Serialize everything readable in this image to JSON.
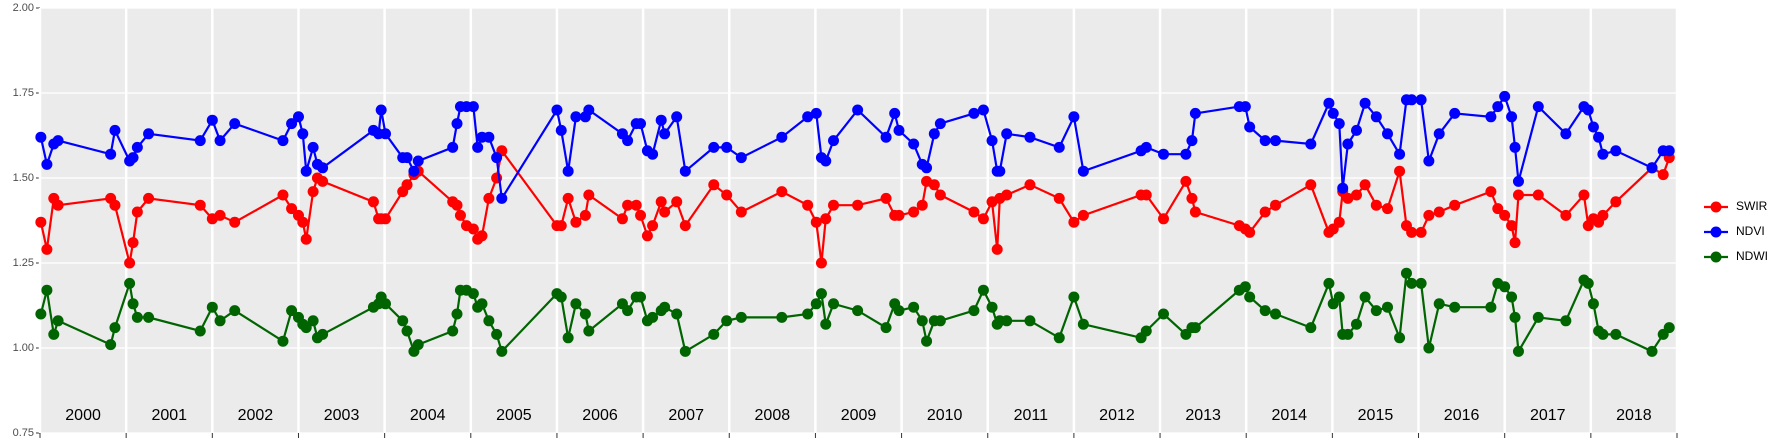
{
  "chart_data": {
    "type": "line",
    "x": [
      2000.01,
      2000.08,
      2000.16,
      2000.21,
      2000.82,
      2000.87,
      2001.04,
      2001.08,
      2001.13,
      2001.26,
      2001.86,
      2002.0,
      2002.09,
      2002.26,
      2002.82,
      2002.92,
      2003.0,
      2003.05,
      2003.09,
      2003.17,
      2003.22,
      2003.28,
      2003.87,
      2003.93,
      2003.96,
      2004.01,
      2004.21,
      2004.26,
      2004.34,
      2004.39,
      2004.79,
      2004.84,
      2004.88,
      2004.95,
      2005.03,
      2005.08,
      2005.13,
      2005.21,
      2005.3,
      2005.36,
      2006.0,
      2006.05,
      2006.13,
      2006.22,
      2006.33,
      2006.37,
      2006.76,
      2006.82,
      2006.92,
      2006.97,
      2007.05,
      2007.11,
      2007.21,
      2007.25,
      2007.39,
      2007.49,
      2007.82,
      2007.97,
      2008.14,
      2008.61,
      2008.91,
      2009.01,
      2009.07,
      2009.12,
      2009.21,
      2009.49,
      2009.82,
      2009.92,
      2009.97,
      2010.14,
      2010.24,
      2010.29,
      2010.38,
      2010.45,
      2010.84,
      2010.95,
      2011.05,
      2011.11,
      2011.14,
      2011.22,
      2011.49,
      2011.83,
      2012.0,
      2012.11,
      2012.78,
      2012.84,
      2013.04,
      2013.3,
      2013.37,
      2013.41,
      2013.92,
      2013.99,
      2014.04,
      2014.22,
      2014.34,
      2014.75,
      2014.96,
      2015.01,
      2015.08,
      2015.12,
      2015.18,
      2015.28,
      2015.38,
      2015.51,
      2015.64,
      2015.78,
      2015.86,
      2015.92,
      2016.03,
      2016.12,
      2016.24,
      2016.42,
      2016.84,
      2016.92,
      2017.0,
      2017.08,
      2017.12,
      2017.16,
      2017.39,
      2017.71,
      2017.92,
      2017.97,
      2018.03,
      2018.09,
      2018.14,
      2018.29,
      2018.71,
      2018.84,
      2018.91
    ],
    "series": [
      {
        "name": "SWIR",
        "color": "#ff0000",
        "values": [
          1.37,
          1.29,
          1.44,
          1.42,
          1.44,
          1.42,
          1.25,
          1.31,
          1.4,
          1.44,
          1.42,
          1.38,
          1.39,
          1.37,
          1.45,
          1.41,
          1.39,
          1.37,
          1.32,
          1.46,
          1.5,
          1.49,
          1.43,
          1.38,
          1.38,
          1.38,
          1.46,
          1.48,
          1.51,
          1.52,
          1.43,
          1.42,
          1.39,
          1.36,
          1.35,
          1.32,
          1.33,
          1.44,
          1.5,
          1.58,
          1.36,
          1.36,
          1.44,
          1.37,
          1.39,
          1.45,
          1.38,
          1.42,
          1.42,
          1.39,
          1.33,
          1.36,
          1.43,
          1.4,
          1.43,
          1.36,
          1.48,
          1.45,
          1.4,
          1.46,
          1.42,
          1.37,
          1.25,
          1.38,
          1.42,
          1.42,
          1.44,
          1.39,
          1.39,
          1.4,
          1.42,
          1.49,
          1.48,
          1.45,
          1.4,
          1.38,
          1.43,
          1.29,
          1.44,
          1.45,
          1.48,
          1.44,
          1.37,
          1.39,
          1.45,
          1.45,
          1.38,
          1.49,
          1.44,
          1.4,
          1.36,
          1.35,
          1.34,
          1.4,
          1.42,
          1.48,
          1.34,
          1.35,
          1.37,
          1.46,
          1.44,
          1.45,
          1.48,
          1.42,
          1.41,
          1.52,
          1.36,
          1.34,
          1.34,
          1.39,
          1.4,
          1.42,
          1.46,
          1.41,
          1.39,
          1.36,
          1.31,
          1.45,
          1.45,
          1.39,
          1.45,
          1.36,
          1.38,
          1.37,
          1.39,
          1.43,
          1.53,
          1.51,
          1.56
        ]
      },
      {
        "name": "NDVI",
        "color": "#0000ff",
        "values": [
          1.62,
          1.54,
          1.6,
          1.61,
          1.57,
          1.64,
          1.55,
          1.56,
          1.59,
          1.63,
          1.61,
          1.67,
          1.61,
          1.66,
          1.61,
          1.66,
          1.68,
          1.63,
          1.52,
          1.59,
          1.54,
          1.53,
          1.64,
          1.63,
          1.7,
          1.63,
          1.56,
          1.56,
          1.52,
          1.55,
          1.59,
          1.66,
          1.71,
          1.71,
          1.71,
          1.59,
          1.62,
          1.62,
          1.56,
          1.44,
          1.7,
          1.64,
          1.52,
          1.68,
          1.68,
          1.7,
          1.63,
          1.61,
          1.66,
          1.66,
          1.58,
          1.57,
          1.67,
          1.63,
          1.68,
          1.52,
          1.59,
          1.59,
          1.56,
          1.62,
          1.68,
          1.69,
          1.56,
          1.55,
          1.61,
          1.7,
          1.62,
          1.69,
          1.64,
          1.6,
          1.54,
          1.53,
          1.63,
          1.66,
          1.69,
          1.7,
          1.61,
          1.52,
          1.52,
          1.63,
          1.62,
          1.59,
          1.68,
          1.52,
          1.58,
          1.59,
          1.57,
          1.57,
          1.61,
          1.69,
          1.71,
          1.71,
          1.65,
          1.61,
          1.61,
          1.6,
          1.72,
          1.69,
          1.66,
          1.47,
          1.6,
          1.64,
          1.72,
          1.68,
          1.63,
          1.57,
          1.73,
          1.73,
          1.73,
          1.55,
          1.63,
          1.69,
          1.68,
          1.71,
          1.74,
          1.68,
          1.59,
          1.49,
          1.71,
          1.63,
          1.71,
          1.7,
          1.65,
          1.62,
          1.57,
          1.58,
          1.53,
          1.58,
          1.58
        ]
      },
      {
        "name": "NDWI",
        "color": "#006400",
        "values": [
          1.1,
          1.17,
          1.04,
          1.08,
          1.01,
          1.06,
          1.19,
          1.13,
          1.09,
          1.09,
          1.05,
          1.12,
          1.08,
          1.11,
          1.02,
          1.11,
          1.09,
          1.07,
          1.06,
          1.08,
          1.03,
          1.04,
          1.12,
          1.13,
          1.15,
          1.13,
          1.08,
          1.05,
          0.99,
          1.01,
          1.05,
          1.1,
          1.17,
          1.17,
          1.16,
          1.12,
          1.13,
          1.08,
          1.04,
          0.99,
          1.16,
          1.15,
          1.03,
          1.13,
          1.1,
          1.05,
          1.13,
          1.11,
          1.15,
          1.15,
          1.08,
          1.09,
          1.11,
          1.12,
          1.1,
          0.99,
          1.04,
          1.08,
          1.09,
          1.09,
          1.1,
          1.13,
          1.16,
          1.07,
          1.13,
          1.11,
          1.06,
          1.13,
          1.11,
          1.12,
          1.08,
          1.02,
          1.08,
          1.08,
          1.11,
          1.17,
          1.12,
          1.07,
          1.08,
          1.08,
          1.08,
          1.03,
          1.15,
          1.07,
          1.03,
          1.05,
          1.1,
          1.04,
          1.06,
          1.06,
          1.17,
          1.18,
          1.15,
          1.11,
          1.1,
          1.06,
          1.19,
          1.13,
          1.15,
          1.04,
          1.04,
          1.07,
          1.15,
          1.11,
          1.12,
          1.03,
          1.22,
          1.19,
          1.19,
          1.0,
          1.13,
          1.12,
          1.12,
          1.19,
          1.18,
          1.15,
          1.09,
          0.99,
          1.09,
          1.08,
          1.2,
          1.19,
          1.13,
          1.05,
          1.04,
          1.04,
          0.99,
          1.04,
          1.06
        ]
      }
    ],
    "xlim": [
      2000,
      2019
    ],
    "xticks": [
      2000,
      2001,
      2002,
      2003,
      2004,
      2005,
      2006,
      2007,
      2008,
      2009,
      2010,
      2011,
      2012,
      2013,
      2014,
      2015,
      2016,
      2017,
      2018,
      2019
    ],
    "year_labels": [
      "2000",
      "2001",
      "2002",
      "2003",
      "2004",
      "2005",
      "2006",
      "2007",
      "2008",
      "2009",
      "2010",
      "2011",
      "2012",
      "2013",
      "2014",
      "2015",
      "2016",
      "2017",
      "2018"
    ],
    "ylim": [
      0.75,
      2.0
    ],
    "yticks": [
      {
        "value": 0.75,
        "label": "0.75"
      },
      {
        "value": 1.0,
        "label": "1.00"
      },
      {
        "value": 1.25,
        "label": "1.25"
      },
      {
        "value": 1.5,
        "label": "1.50"
      },
      {
        "value": 1.75,
        "label": "1.75"
      },
      {
        "value": 2.0,
        "label": "2.00"
      }
    ],
    "grid": true,
    "legend": "right"
  }
}
